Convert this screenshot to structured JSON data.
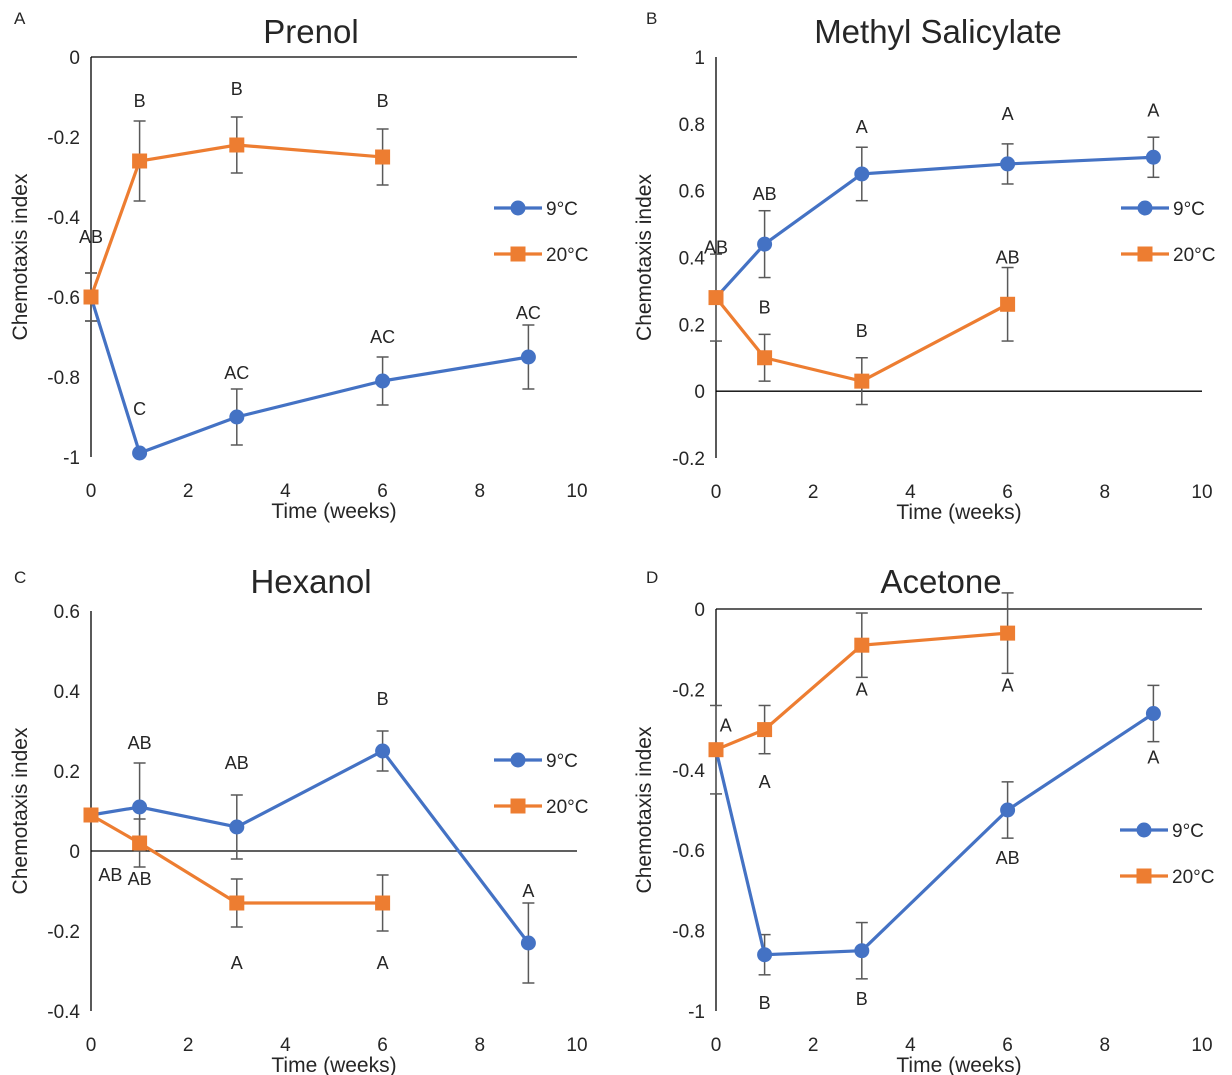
{
  "colors": {
    "9C": "#4472c4",
    "20C": "#ed7d31",
    "errorbar": "#595959",
    "axis": "#000000"
  },
  "chart_data": [
    {
      "panel": "A",
      "type": "line",
      "title": "Prenol",
      "xlabel": "Time (weeks)",
      "ylabel": "Chemotaxis index",
      "xlim": [
        0,
        10
      ],
      "ylim": [
        -1,
        0
      ],
      "xticks": [
        0,
        2,
        4,
        6,
        8,
        10
      ],
      "xtick_labels": [
        "0",
        "2",
        "4",
        "6",
        "8",
        "10"
      ],
      "yticks": [
        -1,
        -0.8,
        -0.6,
        -0.4,
        -0.2,
        0
      ],
      "ytick_labels": [
        "-1",
        "-0.8",
        "-0.6",
        "-0.4",
        "-0.2",
        "0"
      ],
      "x_axis_at": 0,
      "legend_position": "right",
      "series": [
        {
          "name": "9°C",
          "color": "#4472c4",
          "marker": "circle",
          "x": [
            0,
            1,
            3,
            6,
            9
          ],
          "y": [
            -0.6,
            -0.99,
            -0.9,
            -0.81,
            -0.75
          ],
          "err": [
            0.06,
            0.0,
            0.07,
            0.06,
            0.08
          ]
        },
        {
          "name": "20°C",
          "color": "#ed7d31",
          "marker": "square",
          "x": [
            0,
            1,
            3,
            6
          ],
          "y": [
            -0.6,
            -0.26,
            -0.22,
            -0.25
          ],
          "err": [
            0.06,
            0.1,
            0.07,
            0.07
          ]
        }
      ],
      "annotations": [
        {
          "text": "AB",
          "x": 0,
          "y": -0.45
        },
        {
          "text": "B",
          "x": 1,
          "y": -0.11
        },
        {
          "text": "B",
          "x": 3,
          "y": -0.08
        },
        {
          "text": "B",
          "x": 6,
          "y": -0.11
        },
        {
          "text": "C",
          "x": 1,
          "y": -0.88
        },
        {
          "text": "AC",
          "x": 3,
          "y": -0.79
        },
        {
          "text": "AC",
          "x": 6,
          "y": -0.7
        },
        {
          "text": "AC",
          "x": 9,
          "y": -0.64
        }
      ]
    },
    {
      "panel": "B",
      "type": "line",
      "title": "Methyl Salicylate",
      "xlabel": "Time (weeks)",
      "ylabel": "Chemotaxis index",
      "xlim": [
        0,
        10
      ],
      "ylim": [
        -0.2,
        1
      ],
      "xticks": [
        0,
        2,
        4,
        6,
        8,
        10
      ],
      "xtick_labels": [
        "0",
        "2",
        "4",
        "6",
        "8",
        "10"
      ],
      "yticks": [
        -0.2,
        0,
        0.2,
        0.4,
        0.6,
        0.8,
        1
      ],
      "ytick_labels": [
        "-0.2",
        "0",
        "0.2",
        "0.4",
        "0.6",
        "0.8",
        "1"
      ],
      "x_axis_at": 0,
      "legend_position": "right",
      "series": [
        {
          "name": "9°C",
          "color": "#4472c4",
          "marker": "circle",
          "x": [
            0,
            1,
            3,
            6,
            9
          ],
          "y": [
            0.28,
            0.44,
            0.65,
            0.68,
            0.7
          ],
          "err": [
            0.13,
            0.1,
            0.08,
            0.06,
            0.06
          ]
        },
        {
          "name": "20°C",
          "color": "#ed7d31",
          "marker": "square",
          "x": [
            0,
            1,
            3,
            6
          ],
          "y": [
            0.28,
            0.1,
            0.03,
            0.26
          ],
          "err": [
            0.0,
            0.07,
            0.07,
            0.11
          ]
        }
      ],
      "annotations": [
        {
          "text": "AB",
          "x": 0,
          "y": 0.43
        },
        {
          "text": "AB",
          "x": 1,
          "y": 0.59
        },
        {
          "text": "A",
          "x": 3,
          "y": 0.79
        },
        {
          "text": "A",
          "x": 6,
          "y": 0.83
        },
        {
          "text": "A",
          "x": 9,
          "y": 0.84
        },
        {
          "text": "B",
          "x": 1,
          "y": 0.25
        },
        {
          "text": "B",
          "x": 3,
          "y": 0.18
        },
        {
          "text": "AB",
          "x": 6,
          "y": 0.4
        }
      ]
    },
    {
      "panel": "C",
      "type": "line",
      "title": "Hexanol",
      "xlabel": "Time (weeks)",
      "ylabel": "Chemotaxis index",
      "xlim": [
        0,
        10
      ],
      "ylim": [
        -0.4,
        0.6
      ],
      "xticks": [
        0,
        2,
        4,
        6,
        8,
        10
      ],
      "xtick_labels": [
        "0",
        "2",
        "4",
        "6",
        "8",
        "10"
      ],
      "yticks": [
        -0.4,
        -0.2,
        0,
        0.2,
        0.4,
        0.6
      ],
      "ytick_labels": [
        "-0.4",
        "-0.2",
        "0",
        "0.2",
        "0.4",
        "0.6"
      ],
      "x_axis_at": 0,
      "legend_position": "right",
      "series": [
        {
          "name": "9°C",
          "color": "#4472c4",
          "marker": "circle",
          "x": [
            0,
            1,
            3,
            6,
            9
          ],
          "y": [
            0.09,
            0.11,
            0.06,
            0.25,
            -0.23
          ],
          "err": [
            0.0,
            0.11,
            0.08,
            0.05,
            0.1
          ]
        },
        {
          "name": "20°C",
          "color": "#ed7d31",
          "marker": "square",
          "x": [
            0,
            1,
            3,
            6
          ],
          "y": [
            0.09,
            0.02,
            -0.13,
            -0.13
          ],
          "err": [
            0.0,
            0.06,
            0.06,
            0.07
          ]
        }
      ],
      "annotations": [
        {
          "text": "AB",
          "x": 0.4,
          "y": -0.06
        },
        {
          "text": "AB",
          "x": 1,
          "y": 0.27
        },
        {
          "text": "AB",
          "x": 3,
          "y": 0.22
        },
        {
          "text": "B",
          "x": 6,
          "y": 0.38
        },
        {
          "text": "A",
          "x": 9,
          "y": -0.1
        },
        {
          "text": "AB",
          "x": 1,
          "y": -0.07
        },
        {
          "text": "A",
          "x": 3,
          "y": -0.28
        },
        {
          "text": "A",
          "x": 6,
          "y": -0.28
        }
      ]
    },
    {
      "panel": "D",
      "type": "line",
      "title": "Acetone",
      "xlabel": "Time (weeks)",
      "ylabel": "Chemotaxis index",
      "xlim": [
        0,
        10
      ],
      "ylim": [
        -1,
        0
      ],
      "xticks": [
        0,
        2,
        4,
        6,
        8,
        10
      ],
      "xtick_labels": [
        "0",
        "2",
        "4",
        "6",
        "8",
        "10"
      ],
      "yticks": [
        -1,
        -0.8,
        -0.6,
        -0.4,
        -0.2,
        0
      ],
      "ytick_labels": [
        "-1",
        "-0.8",
        "-0.6",
        "-0.4",
        "-0.2",
        "0"
      ],
      "x_axis_at": 0,
      "legend_position": "right",
      "series": [
        {
          "name": "9°C",
          "color": "#4472c4",
          "marker": "circle",
          "x": [
            0,
            1,
            3,
            6,
            9
          ],
          "y": [
            -0.35,
            -0.86,
            -0.85,
            -0.5,
            -0.26
          ],
          "err": [
            0.11,
            0.05,
            0.07,
            0.07,
            0.07
          ]
        },
        {
          "name": "20°C",
          "color": "#ed7d31",
          "marker": "square",
          "x": [
            0,
            1,
            3,
            6
          ],
          "y": [
            -0.35,
            -0.3,
            -0.09,
            -0.06
          ],
          "err": [
            0.0,
            0.06,
            0.08,
            0.1
          ]
        }
      ],
      "annotations": [
        {
          "text": "A",
          "x": 0.2,
          "y": -0.29
        },
        {
          "text": "A",
          "x": 1,
          "y": -0.43
        },
        {
          "text": "A",
          "x": 3,
          "y": -0.2
        },
        {
          "text": "A",
          "x": 6,
          "y": -0.19
        },
        {
          "text": "A",
          "x": 9,
          "y": -0.37
        },
        {
          "text": "AB",
          "x": 6,
          "y": -0.62
        },
        {
          "text": "B",
          "x": 1,
          "y": -0.98
        },
        {
          "text": "B",
          "x": 3,
          "y": -0.97
        }
      ]
    }
  ]
}
